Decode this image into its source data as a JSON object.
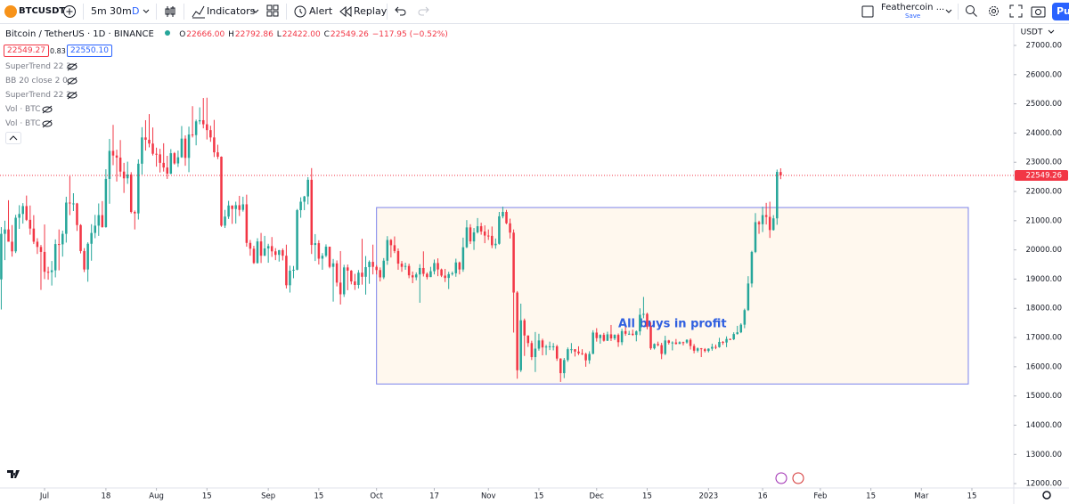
{
  "toolbar": {
    "symbol": "BTCUSDT",
    "intervals": [
      "5m",
      "30m",
      "D"
    ],
    "indicators": "Indicators",
    "alert": "Alert",
    "replay": "Replay",
    "layout": "Feathercoin ...",
    "save": "Save",
    "publish": "Pu"
  },
  "legend": {
    "title": "Bitcoin / TetherUS · 1D · BINANCE",
    "o_label": "O",
    "o": "22666.00",
    "h_label": "H",
    "h": "22792.86",
    "l_label": "L",
    "l": "22422.00",
    "c_label": "C",
    "c": "22549.26",
    "change": "−117.95 (−0.52%)",
    "bid": "22549.27",
    "spread": "0.83",
    "ask": "22550.10",
    "indicators": [
      "SuperTrend 22 3",
      "BB 20 close 2 0",
      "SuperTrend 22 2",
      "Vol · BTC",
      "Vol · BTC"
    ]
  },
  "chart_data": {
    "type": "candlestick",
    "currency": "USDT",
    "up_color": "#26a69a",
    "down_color": "#f23645",
    "grid": false,
    "xlim": [
      -0.35,
      280.6
    ],
    "ylim": [
      11850,
      27640
    ],
    "yticks": [
      {
        "value": 12000,
        "label": "12000.00"
      },
      {
        "value": 13000,
        "label": "13000.00"
      },
      {
        "value": 14000,
        "label": "14000.00"
      },
      {
        "value": 15000,
        "label": "15000.00"
      },
      {
        "value": 16000,
        "label": "16000.00"
      },
      {
        "value": 17000,
        "label": "17000.00"
      },
      {
        "value": 18000,
        "label": "18000.00"
      },
      {
        "value": 19000,
        "label": "19000.00"
      },
      {
        "value": 20000,
        "label": "20000.00"
      },
      {
        "value": 21000,
        "label": "21000.00"
      },
      {
        "value": 22000,
        "label": "22000.00"
      },
      {
        "value": 23000,
        "label": "23000.00"
      },
      {
        "value": 24000,
        "label": "24000.00"
      },
      {
        "value": 25000,
        "label": "25000.00"
      },
      {
        "value": 26000,
        "label": "26000.00"
      },
      {
        "value": 27000,
        "label": "27000.00"
      }
    ],
    "xticks": [
      {
        "value": 12,
        "label": "Jul"
      },
      {
        "value": 29,
        "label": "18"
      },
      {
        "value": 43,
        "label": "Aug"
      },
      {
        "value": 57,
        "label": "15"
      },
      {
        "value": 74,
        "label": "Sep"
      },
      {
        "value": 88,
        "label": "15"
      },
      {
        "value": 104,
        "label": "Oct"
      },
      {
        "value": 120,
        "label": "17"
      },
      {
        "value": 135,
        "label": "Nov"
      },
      {
        "value": 149,
        "label": "15"
      },
      {
        "value": 165,
        "label": "Dec"
      },
      {
        "value": 179,
        "label": "15"
      },
      {
        "value": 196,
        "label": "2023"
      },
      {
        "value": 211,
        "label": "16"
      },
      {
        "value": 227,
        "label": "Feb"
      },
      {
        "value": 241,
        "label": "15"
      },
      {
        "value": 255,
        "label": "Mar"
      },
      {
        "value": 269,
        "label": "15"
      }
    ],
    "box": {
      "x": [
        104,
        268
      ],
      "y": [
        15410,
        21450
      ],
      "label": "All buys in profit",
      "color": "#7b83eb",
      "fill": "#fff8ee"
    },
    "ohlc": [
      [
        18990,
        20780,
        17960,
        20550
      ],
      [
        20550,
        21000,
        19650,
        20700
      ],
      [
        20700,
        21700,
        20350,
        20280
      ],
      [
        20280,
        20850,
        19770,
        19950
      ],
      [
        19950,
        21200,
        19890,
        21100
      ],
      [
        21100,
        21530,
        20720,
        21230
      ],
      [
        21230,
        21600,
        20900,
        21500
      ],
      [
        21500,
        21860,
        20990,
        21030
      ],
      [
        21030,
        21520,
        20520,
        20730
      ],
      [
        20730,
        21190,
        20200,
        20280
      ],
      [
        20280,
        20400,
        19860,
        20100
      ],
      [
        20100,
        20170,
        18630,
        19930
      ],
      [
        19930,
        20870,
        19000,
        19250
      ],
      [
        19250,
        19420,
        18980,
        19240
      ],
      [
        19240,
        19620,
        18780,
        19300
      ],
      [
        19300,
        20360,
        19060,
        20200
      ],
      [
        20200,
        20700,
        19300,
        20190
      ],
      [
        20190,
        20660,
        19770,
        20550
      ],
      [
        20550,
        21820,
        20250,
        21620
      ],
      [
        21620,
        22530,
        21190,
        21590
      ],
      [
        21590,
        21940,
        21330,
        21590
      ],
      [
        21590,
        21610,
        20650,
        20850
      ],
      [
        20850,
        20880,
        19880,
        19960
      ],
      [
        19960,
        20060,
        19240,
        19330
      ],
      [
        19330,
        20260,
        18910,
        20210
      ],
      [
        20210,
        20880,
        19630,
        20580
      ],
      [
        20580,
        21200,
        20400,
        20830
      ],
      [
        20830,
        21590,
        20480,
        21190
      ],
      [
        21190,
        21670,
        20760,
        20780
      ],
      [
        20780,
        22760,
        20760,
        22430
      ],
      [
        22430,
        23800,
        21580,
        23390
      ],
      [
        23390,
        24280,
        22900,
        23230
      ],
      [
        23230,
        23430,
        22340,
        23160
      ],
      [
        23160,
        23760,
        22500,
        22680
      ],
      [
        22680,
        22980,
        21950,
        22450
      ],
      [
        22450,
        23020,
        22260,
        22580
      ],
      [
        22580,
        22660,
        21250,
        21300
      ],
      [
        21300,
        21350,
        20700,
        21250
      ],
      [
        21250,
        23100,
        21040,
        22950
      ],
      [
        22950,
        24200,
        22580,
        23850
      ],
      [
        23850,
        24440,
        23400,
        23770
      ],
      [
        23770,
        24650,
        23510,
        23640
      ],
      [
        23640,
        24190,
        23230,
        23290
      ],
      [
        23290,
        23500,
        22850,
        23270
      ],
      [
        23270,
        23460,
        22650,
        22980
      ],
      [
        22980,
        23650,
        22680,
        22820
      ],
      [
        22820,
        23220,
        22430,
        22610
      ],
      [
        22610,
        23450,
        22590,
        23310
      ],
      [
        23310,
        23350,
        22920,
        22960
      ],
      [
        22960,
        23400,
        22840,
        23170
      ],
      [
        23170,
        24240,
        23150,
        23810
      ],
      [
        23810,
        23920,
        22880,
        23150
      ],
      [
        23150,
        24220,
        22660,
        23950
      ],
      [
        23950,
        24920,
        23850,
        23930
      ],
      [
        23930,
        24460,
        23580,
        24400
      ],
      [
        24400,
        24880,
        24300,
        24440
      ],
      [
        24440,
        25200,
        24160,
        24300
      ],
      [
        24300,
        25210,
        23780,
        24100
      ],
      [
        24100,
        24250,
        23700,
        23850
      ],
      [
        23850,
        24450,
        23180,
        23340
      ],
      [
        23340,
        23600,
        23110,
        23190
      ],
      [
        23190,
        23200,
        20790,
        20830
      ],
      [
        20830,
        21370,
        20750,
        21140
      ],
      [
        21140,
        21680,
        21060,
        21520
      ],
      [
        21520,
        21520,
        20890,
        21400
      ],
      [
        21400,
        21650,
        20900,
        21530
      ],
      [
        21530,
        21850,
        21160,
        21370
      ],
      [
        21370,
        21820,
        21310,
        21560
      ],
      [
        21560,
        21890,
        20110,
        20240
      ],
      [
        20240,
        20340,
        19800,
        20040
      ],
      [
        20040,
        20140,
        19520,
        19550
      ],
      [
        19550,
        20400,
        19530,
        20290
      ],
      [
        20290,
        20580,
        19550,
        19800
      ],
      [
        19800,
        20480,
        19790,
        20050
      ],
      [
        20050,
        20210,
        19560,
        20130
      ],
      [
        20130,
        20440,
        19760,
        19950
      ],
      [
        19950,
        20060,
        19650,
        19830
      ],
      [
        19830,
        20000,
        19600,
        19990
      ],
      [
        19990,
        20050,
        19640,
        19800
      ],
      [
        19800,
        20180,
        18680,
        18790
      ],
      [
        18790,
        19460,
        18540,
        19290
      ],
      [
        19290,
        19450,
        19030,
        19320
      ],
      [
        19320,
        21400,
        19300,
        21360
      ],
      [
        21360,
        21800,
        21100,
        21650
      ],
      [
        21650,
        21850,
        21360,
        21830
      ],
      [
        21830,
        22490,
        21560,
        22400
      ],
      [
        22400,
        22800,
        19860,
        20170
      ],
      [
        20170,
        20540,
        19620,
        20230
      ],
      [
        20230,
        20330,
        19500,
        19700
      ],
      [
        19700,
        19890,
        19320,
        19800
      ],
      [
        19800,
        20190,
        19750,
        20110
      ],
      [
        20110,
        20110,
        19370,
        19420
      ],
      [
        19420,
        19690,
        18230,
        19540
      ],
      [
        19540,
        19640,
        18750,
        18880
      ],
      [
        18880,
        19960,
        18130,
        18480
      ],
      [
        18480,
        19490,
        18390,
        19400
      ],
      [
        19400,
        19500,
        18620,
        19290
      ],
      [
        19290,
        19310,
        18820,
        18920
      ],
      [
        18920,
        19180,
        18630,
        18800
      ],
      [
        18800,
        19310,
        18680,
        19220
      ],
      [
        19220,
        20380,
        18810,
        19080
      ],
      [
        19080,
        19790,
        18470,
        19410
      ],
      [
        19410,
        19640,
        18840,
        19590
      ],
      [
        19590,
        20180,
        19160,
        19420
      ],
      [
        19420,
        19480,
        19160,
        19310
      ],
      [
        19310,
        19400,
        18920,
        19060
      ],
      [
        19060,
        19720,
        19000,
        19630
      ],
      [
        19630,
        20470,
        19490,
        20340
      ],
      [
        20340,
        20370,
        19740,
        20160
      ],
      [
        20160,
        20460,
        19890,
        19960
      ],
      [
        19960,
        20050,
        19320,
        19530
      ],
      [
        19530,
        19620,
        19250,
        19420
      ],
      [
        19420,
        19560,
        19320,
        19450
      ],
      [
        19450,
        19530,
        19030,
        19130
      ],
      [
        19130,
        19260,
        18860,
        19060
      ],
      [
        19060,
        19230,
        18960,
        19160
      ],
      [
        19160,
        19510,
        18190,
        19380
      ],
      [
        19380,
        19950,
        19090,
        19180
      ],
      [
        19180,
        19230,
        18990,
        19070
      ],
      [
        19070,
        19420,
        19070,
        19270
      ],
      [
        19270,
        19670,
        19160,
        19550
      ],
      [
        19550,
        19710,
        19100,
        19330
      ],
      [
        19330,
        19360,
        19070,
        19120
      ],
      [
        19120,
        19350,
        18900,
        19040
      ],
      [
        19040,
        19250,
        18660,
        19170
      ],
      [
        19170,
        19260,
        19120,
        19200
      ],
      [
        19200,
        19700,
        19080,
        19570
      ],
      [
        19570,
        19600,
        19160,
        19330
      ],
      [
        19330,
        20420,
        19250,
        20090
      ],
      [
        20090,
        21020,
        20060,
        20770
      ],
      [
        20770,
        20880,
        20200,
        20290
      ],
      [
        20290,
        20750,
        20000,
        20600
      ],
      [
        20600,
        21090,
        20560,
        20810
      ],
      [
        20810,
        20930,
        20520,
        20630
      ],
      [
        20630,
        20840,
        20230,
        20490
      ],
      [
        20490,
        20700,
        20340,
        20480
      ],
      [
        20480,
        20800,
        20060,
        20160
      ],
      [
        20160,
        20390,
        20040,
        20210
      ],
      [
        20210,
        21300,
        20180,
        21150
      ],
      [
        21150,
        21480,
        21080,
        21300
      ],
      [
        21300,
        21370,
        20880,
        20910
      ],
      [
        20910,
        21070,
        20390,
        20590
      ],
      [
        20590,
        20700,
        17170,
        18540
      ],
      [
        18540,
        18590,
        15590,
        15880
      ],
      [
        15880,
        18160,
        15820,
        17590
      ],
      [
        17590,
        17650,
        16370,
        17070
      ],
      [
        17070,
        17070,
        16680,
        16810
      ],
      [
        16810,
        16890,
        16230,
        16330
      ],
      [
        16330,
        17190,
        15820,
        16620
      ],
      [
        16620,
        17130,
        16550,
        16900
      ],
      [
        16900,
        16960,
        16390,
        16660
      ],
      [
        16660,
        16750,
        16400,
        16690
      ],
      [
        16690,
        16860,
        16570,
        16700
      ],
      [
        16700,
        16810,
        16560,
        16700
      ],
      [
        16700,
        16750,
        16200,
        16280
      ],
      [
        16280,
        16290,
        15480,
        15780
      ],
      [
        15780,
        16300,
        15610,
        16230
      ],
      [
        16230,
        16660,
        16170,
        16600
      ],
      [
        16600,
        16810,
        16460,
        16600
      ],
      [
        16600,
        16600,
        16350,
        16520
      ],
      [
        16520,
        16700,
        16400,
        16460
      ],
      [
        16460,
        16600,
        16400,
        16440
      ],
      [
        16440,
        16480,
        16000,
        16220
      ],
      [
        16220,
        16530,
        16100,
        16440
      ],
      [
        16440,
        17250,
        16430,
        17170
      ],
      [
        17170,
        17320,
        16860,
        16980
      ],
      [
        16980,
        17110,
        16790,
        17090
      ],
      [
        17090,
        17160,
        16860,
        16890
      ],
      [
        16890,
        17200,
        16880,
        17110
      ],
      [
        17110,
        17430,
        16880,
        16970
      ],
      [
        16970,
        17110,
        16910,
        17090
      ],
      [
        17090,
        17140,
        16680,
        16840
      ],
      [
        16840,
        17300,
        16740,
        17220
      ],
      [
        17220,
        17350,
        17060,
        17130
      ],
      [
        17130,
        17230,
        17090,
        17130
      ],
      [
        17130,
        17270,
        17060,
        17090
      ],
      [
        17090,
        17240,
        16870,
        17210
      ],
      [
        17210,
        18000,
        17080,
        17780
      ],
      [
        17780,
        18390,
        17660,
        17810
      ],
      [
        17810,
        17850,
        17280,
        17360
      ],
      [
        17360,
        17530,
        16580,
        16630
      ],
      [
        16630,
        16800,
        16590,
        16780
      ],
      [
        16780,
        16860,
        16700,
        16740
      ],
      [
        16740,
        16820,
        16260,
        16440
      ],
      [
        16440,
        17060,
        16400,
        16900
      ],
      [
        16900,
        16920,
        16760,
        16820
      ],
      [
        16820,
        16870,
        16560,
        16830
      ],
      [
        16830,
        16950,
        16760,
        16780
      ],
      [
        16780,
        16870,
        16780,
        16840
      ],
      [
        16840,
        16860,
        16730,
        16830
      ],
      [
        16830,
        16940,
        16790,
        16920
      ],
      [
        16920,
        16970,
        16590,
        16710
      ],
      [
        16710,
        16780,
        16460,
        16550
      ],
      [
        16550,
        16660,
        16490,
        16630
      ],
      [
        16630,
        16640,
        16330,
        16600
      ],
      [
        16600,
        16640,
        16490,
        16540
      ],
      [
        16540,
        16630,
        16490,
        16620
      ],
      [
        16620,
        16790,
        16550,
        16680
      ],
      [
        16680,
        16760,
        16600,
        16670
      ],
      [
        16670,
        16990,
        16650,
        16850
      ],
      [
        16850,
        16880,
        16750,
        16830
      ],
      [
        16830,
        17040,
        16670,
        16950
      ],
      [
        16950,
        16970,
        16910,
        16940
      ],
      [
        16940,
        17180,
        16910,
        17120
      ],
      [
        17120,
        17400,
        17100,
        17180
      ],
      [
        17180,
        17490,
        17150,
        17440
      ],
      [
        17440,
        17990,
        17320,
        17940
      ],
      [
        17940,
        19100,
        17910,
        18850
      ],
      [
        18850,
        19970,
        18720,
        19930
      ],
      [
        19930,
        21260,
        19890,
        20950
      ],
      [
        20950,
        21000,
        20550,
        20880
      ],
      [
        20880,
        21480,
        20610,
        21190
      ],
      [
        21190,
        21610,
        20870,
        21130
      ],
      [
        21130,
        21650,
        20410,
        20680
      ],
      [
        20680,
        21190,
        20660,
        21080
      ],
      [
        21080,
        22750,
        20860,
        22670
      ],
      [
        22666,
        22792.86,
        22422,
        22549.26
      ]
    ]
  }
}
